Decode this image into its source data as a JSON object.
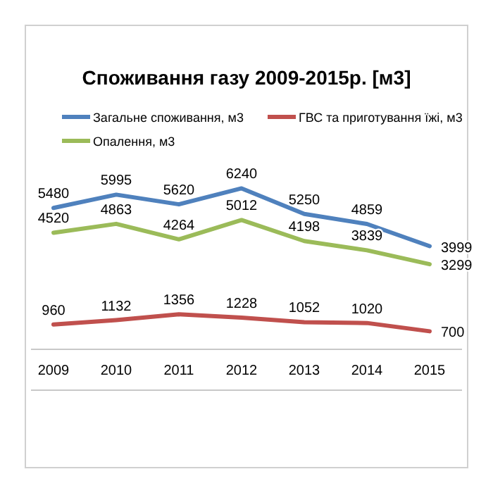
{
  "chart_data": {
    "type": "line",
    "title": "Споживання газу 2009-2015р. [м3]",
    "categories": [
      "2009",
      "2010",
      "2011",
      "2012",
      "2013",
      "2014",
      "2015"
    ],
    "series": [
      {
        "name": "Загальне споживання, м3",
        "color": "#4f81bd",
        "values": [
          5480,
          5995,
          5620,
          6240,
          5250,
          4859,
          3999
        ]
      },
      {
        "name": "ГВС та приготування їжі, м3",
        "color": "#c0504d",
        "values": [
          960,
          1132,
          1356,
          1228,
          1052,
          1020,
          700
        ]
      },
      {
        "name": "Опалення, м3",
        "color": "#9bbb59",
        "values": [
          4520,
          4863,
          4264,
          5012,
          4198,
          3839,
          3299
        ]
      }
    ],
    "tick_labels": "x",
    "data_labels": true,
    "legend": "top",
    "grid": false,
    "marker": "none",
    "line_style": "solid"
  }
}
